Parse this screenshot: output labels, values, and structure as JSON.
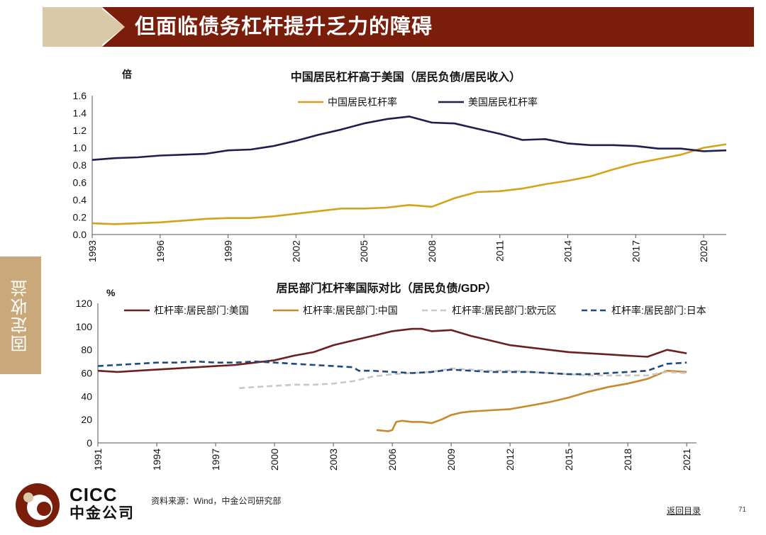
{
  "header": {
    "title": "但面临债务杠杆提升乏力的障碍"
  },
  "side_tab": {
    "label": "固定收益"
  },
  "footer": {
    "source": "资料来源：Wind，中金公司研究部",
    "back_link": "返回目录",
    "page_number": "71",
    "logo_en": "CICC",
    "logo_cn": "中金公司"
  },
  "colors": {
    "brand": "#7a1d0b",
    "accent": "#d9c9a8",
    "china_top": "#d4a21c",
    "us_top": "#1f1f4f",
    "us_bottom": "#6b1f1f",
    "china_bottom": "#c88a2e",
    "euro": "#c8c8c8",
    "japan": "#1f4a7a"
  },
  "chart_data": [
    {
      "type": "line",
      "title": "中国居民杠杆高于美国（居民负债/居民收入）",
      "ylabel": "倍",
      "ylim": [
        0,
        1.6
      ],
      "xlim": [
        1993,
        2021
      ],
      "yticks": [
        "0.0",
        "0.2",
        "0.4",
        "0.6",
        "0.8",
        "1.0",
        "1.2",
        "1.4",
        "1.6"
      ],
      "xticks": [
        "1993",
        "1996",
        "1999",
        "2002",
        "2005",
        "2008",
        "2011",
        "2014",
        "2017",
        "2020"
      ],
      "series": [
        {
          "name": "中国居民杠杆率",
          "x": [
            1993,
            1994,
            1995,
            1996,
            1997,
            1998,
            1999,
            2000,
            2001,
            2002,
            2003,
            2004,
            2005,
            2006,
            2007,
            2008,
            2009,
            2010,
            2011,
            2012,
            2013,
            2014,
            2015,
            2016,
            2017,
            2018,
            2019,
            2020,
            2021
          ],
          "values": [
            0.13,
            0.12,
            0.13,
            0.14,
            0.16,
            0.18,
            0.19,
            0.19,
            0.21,
            0.24,
            0.27,
            0.3,
            0.3,
            0.31,
            0.34,
            0.32,
            0.42,
            0.49,
            0.5,
            0.53,
            0.58,
            0.62,
            0.67,
            0.75,
            0.82,
            0.87,
            0.92,
            1.0,
            1.04
          ]
        },
        {
          "name": "美国居民杠杆率",
          "x": [
            1993,
            1994,
            1995,
            1996,
            1997,
            1998,
            1999,
            2000,
            2001,
            2002,
            2003,
            2004,
            2005,
            2006,
            2007,
            2008,
            2009,
            2010,
            2011,
            2012,
            2013,
            2014,
            2015,
            2016,
            2017,
            2018,
            2019,
            2020,
            2021
          ],
          "values": [
            0.86,
            0.88,
            0.89,
            0.91,
            0.92,
            0.93,
            0.97,
            0.98,
            1.02,
            1.08,
            1.15,
            1.21,
            1.28,
            1.33,
            1.36,
            1.29,
            1.28,
            1.22,
            1.16,
            1.09,
            1.1,
            1.05,
            1.03,
            1.03,
            1.02,
            0.99,
            0.99,
            0.96,
            0.97
          ]
        }
      ]
    },
    {
      "type": "line",
      "title": "居民部门杠杆率国际对比（居民负债/GDP）",
      "ylabel": "%",
      "ylim": [
        0,
        120
      ],
      "xlim": [
        1991,
        2021.5
      ],
      "yticks": [
        "0",
        "20",
        "40",
        "60",
        "80",
        "100",
        "120"
      ],
      "xticks": [
        "1991",
        "1994",
        "1997",
        "2000",
        "2003",
        "2006",
        "2009",
        "2012",
        "2015",
        "2018",
        "2021"
      ],
      "series": [
        {
          "name": "杠杆率:居民部门:美国",
          "style": "solid",
          "x": [
            1991,
            1992,
            1993,
            1994,
            1995,
            1996,
            1997,
            1998,
            1999,
            2000,
            2001,
            2002,
            2003,
            2004,
            2005,
            2006,
            2007,
            2007.5,
            2008,
            2009,
            2010,
            2011,
            2012,
            2013,
            2014,
            2015,
            2016,
            2017,
            2018,
            2019,
            2020,
            2021
          ],
          "values": [
            62,
            61,
            62,
            63,
            64,
            65,
            66,
            67,
            69,
            71,
            75,
            78,
            84,
            88,
            92,
            96,
            98,
            98,
            96,
            97,
            92,
            88,
            84,
            82,
            80,
            78,
            77,
            76,
            75,
            74,
            80,
            77
          ]
        },
        {
          "name": "杠杆率:居民部门:中国",
          "style": "solid",
          "x": [
            2005.2,
            2005.8,
            2006,
            2006.2,
            2006.5,
            2007,
            2007.5,
            2008,
            2008.5,
            2009,
            2009.5,
            2010,
            2011,
            2012,
            2013,
            2014,
            2015,
            2016,
            2017,
            2018,
            2019,
            2020,
            2021
          ],
          "values": [
            11,
            10,
            11,
            18,
            19,
            18,
            18,
            17,
            20,
            24,
            26,
            27,
            28,
            29,
            32,
            35,
            39,
            44,
            48,
            51,
            55,
            62,
            61
          ]
        },
        {
          "name": "杠杆率:居民部门:欧元区",
          "style": "dashed",
          "x": [
            1998.2,
            1999,
            2000,
            2001,
            2002,
            2003,
            2004,
            2005,
            2006,
            2007,
            2008,
            2009,
            2010,
            2011,
            2012,
            2013,
            2014,
            2015,
            2016,
            2017,
            2018,
            2019,
            2020,
            2021
          ],
          "values": [
            47,
            48,
            49,
            50,
            50,
            51,
            53,
            57,
            59,
            60,
            61,
            64,
            63,
            62,
            62,
            61,
            60,
            59,
            58,
            58,
            58,
            58,
            61,
            60
          ]
        },
        {
          "name": "杠杆率:居民部门:日本",
          "style": "dashed",
          "x": [
            1991,
            1992,
            1993,
            1994,
            1995,
            1996,
            1997,
            1998,
            1999,
            2000,
            2001,
            2002,
            2003,
            2004,
            2004.3,
            2005,
            2006,
            2007,
            2008,
            2009,
            2010,
            2011,
            2012,
            2013,
            2014,
            2015,
            2016,
            2017,
            2018,
            2019,
            2020,
            2021
          ],
          "values": [
            66,
            67,
            68,
            69,
            69,
            70,
            69,
            69,
            70,
            69,
            68,
            67,
            66,
            65,
            62,
            62,
            61,
            60,
            61,
            63,
            62,
            61,
            61,
            61,
            60,
            59,
            59,
            60,
            61,
            62,
            68,
            69
          ]
        }
      ]
    }
  ]
}
